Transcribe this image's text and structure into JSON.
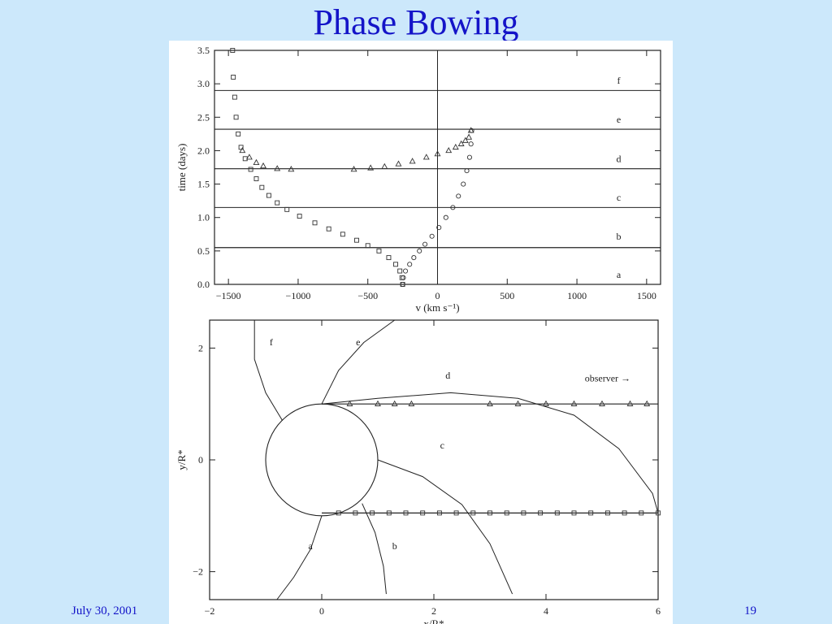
{
  "slide": {
    "title": "Phase Bowing",
    "footer_date": "July 30, 2001",
    "page_number": "19"
  },
  "chart_data": [
    {
      "type": "scatter",
      "title": "",
      "xlabel": "v (km s⁻¹)",
      "ylabel": "time (days)",
      "xlim": [
        -1600,
        1600
      ],
      "ylim": [
        0,
        3.5
      ],
      "x_ticks": [
        "−1500",
        "−1000",
        "−500",
        "0",
        "500",
        "1000",
        "1500"
      ],
      "y_ticks": [
        "0.0",
        "0.5",
        "1.0",
        "1.5",
        "2.0",
        "2.5",
        "3.0",
        "3.5"
      ],
      "phase_lines": [
        {
          "label": "a",
          "time": 0.55
        },
        {
          "label": "b",
          "time": 0.55
        },
        {
          "label": "c",
          "time": 1.15
        },
        {
          "label": "d",
          "time": 1.73
        },
        {
          "label": "e",
          "time": 2.32
        },
        {
          "label": "f",
          "time": 2.9
        }
      ],
      "series": [
        {
          "marker": "square",
          "points": [
            [
              -250,
              0
            ],
            [
              -255,
              0.1
            ],
            [
              -270,
              0.2
            ],
            [
              -300,
              0.3
            ],
            [
              -350,
              0.4
            ],
            [
              -420,
              0.5
            ],
            [
              -500,
              0.58
            ],
            [
              -580,
              0.66
            ],
            [
              -680,
              0.75
            ],
            [
              -780,
              0.83
            ],
            [
              -880,
              0.92
            ],
            [
              -990,
              1.02
            ],
            [
              -1080,
              1.12
            ],
            [
              -1150,
              1.22
            ],
            [
              -1210,
              1.33
            ],
            [
              -1260,
              1.45
            ],
            [
              -1300,
              1.58
            ],
            [
              -1340,
              1.72
            ],
            [
              -1380,
              1.88
            ],
            [
              -1410,
              2.05
            ],
            [
              -1430,
              2.25
            ],
            [
              -1445,
              2.5
            ],
            [
              -1455,
              2.8
            ],
            [
              -1465,
              3.1
            ],
            [
              -1470,
              3.5
            ]
          ]
        },
        {
          "marker": "circle",
          "points": [
            [
              -250,
              0
            ],
            [
              -245,
              0.1
            ],
            [
              -230,
              0.2
            ],
            [
              -200,
              0.3
            ],
            [
              -170,
              0.4
            ],
            [
              -130,
              0.5
            ],
            [
              -90,
              0.6
            ],
            [
              -40,
              0.72
            ],
            [
              10,
              0.85
            ],
            [
              60,
              1.0
            ],
            [
              110,
              1.15
            ],
            [
              150,
              1.32
            ],
            [
              185,
              1.5
            ],
            [
              210,
              1.7
            ],
            [
              230,
              1.9
            ],
            [
              240,
              2.1
            ],
            [
              245,
              2.3
            ]
          ]
        },
        {
          "marker": "triangle",
          "points": [
            [
              -1400,
              2.0
            ],
            [
              -1350,
              1.9
            ],
            [
              -1300,
              1.82
            ],
            [
              -1250,
              1.77
            ],
            [
              -1150,
              1.73
            ],
            [
              -1050,
              1.72
            ],
            [
              -600,
              1.72
            ],
            [
              -480,
              1.74
            ],
            [
              -380,
              1.76
            ],
            [
              -280,
              1.8
            ],
            [
              -180,
              1.84
            ],
            [
              -80,
              1.9
            ],
            [
              0,
              1.95
            ],
            [
              80,
              2.0
            ],
            [
              130,
              2.05
            ],
            [
              170,
              2.1
            ],
            [
              200,
              2.15
            ],
            [
              225,
              2.2
            ],
            [
              240,
              2.3
            ]
          ]
        }
      ]
    },
    {
      "type": "line",
      "title": "",
      "xlabel": "x/R*",
      "ylabel": "y/R*",
      "xlim": [
        -2,
        6
      ],
      "ylim": [
        -2.5,
        2.5
      ],
      "x_ticks": [
        "−2",
        "0",
        "2",
        "4",
        "6"
      ],
      "y_ticks": [
        "−2",
        "0",
        "2"
      ],
      "star_radius": 1,
      "observer_label": "observer →",
      "curve_labels": [
        {
          "label": "a",
          "x": -0.2,
          "y": -1.6
        },
        {
          "label": "b",
          "x": 1.3,
          "y": -1.6
        },
        {
          "label": "c",
          "x": 2.15,
          "y": 0.2
        },
        {
          "label": "d",
          "x": 2.25,
          "y": 1.45
        },
        {
          "label": "e",
          "x": 0.65,
          "y": 2.05
        },
        {
          "label": "f",
          "x": -0.9,
          "y": 2.05
        }
      ],
      "rays": [
        {
          "y": 1.0,
          "x_start": 0,
          "x_end": 6
        },
        {
          "y": -0.95,
          "x_start": 0,
          "x_end": 6
        }
      ],
      "curves": [
        {
          "name": "a",
          "points": [
            [
              0,
              -1
            ],
            [
              -0.2,
              -1.6
            ],
            [
              -0.5,
              -2.1
            ],
            [
              -0.8,
              -2.5
            ]
          ]
        },
        {
          "name": "b",
          "points": [
            [
              0.72,
              -0.78
            ],
            [
              0.95,
              -1.3
            ],
            [
              1.1,
              -1.9
            ],
            [
              1.15,
              -2.4
            ]
          ]
        },
        {
          "name": "c",
          "points": [
            [
              1.0,
              0.0
            ],
            [
              1.8,
              -0.3
            ],
            [
              2.5,
              -0.8
            ],
            [
              3.0,
              -1.5
            ],
            [
              3.4,
              -2.4
            ]
          ]
        },
        {
          "name": "d",
          "points": [
            [
              0,
              1.0
            ],
            [
              1.0,
              1.1
            ],
            [
              2.3,
              1.2
            ],
            [
              3.5,
              1.1
            ],
            [
              4.5,
              0.8
            ],
            [
              5.3,
              0.2
            ],
            [
              5.9,
              -0.6
            ],
            [
              6.0,
              -0.95
            ]
          ]
        },
        {
          "name": "e",
          "points": [
            [
              0,
              1.0
            ],
            [
              0.3,
              1.6
            ],
            [
              0.75,
              2.1
            ],
            [
              1.3,
              2.5
            ]
          ]
        },
        {
          "name": "f",
          "points": [
            [
              -0.7,
              0.7
            ],
            [
              -1.0,
              1.2
            ],
            [
              -1.2,
              1.8
            ],
            [
              -1.2,
              2.5
            ]
          ]
        }
      ],
      "markers_upper": [
        [
          0.5,
          1.0
        ],
        [
          1.0,
          1.0
        ],
        [
          1.3,
          1.0
        ],
        [
          1.6,
          1.0
        ],
        [
          3.0,
          1.0
        ],
        [
          3.5,
          1.0
        ],
        [
          4.0,
          1.0
        ],
        [
          4.5,
          1.0
        ],
        [
          5.0,
          1.0
        ],
        [
          5.5,
          1.0
        ],
        [
          5.8,
          1.0
        ]
      ],
      "markers_lower": [
        [
          0.3,
          -0.95
        ],
        [
          0.6,
          -0.95
        ],
        [
          0.9,
          -0.95
        ],
        [
          1.2,
          -0.95
        ],
        [
          1.5,
          -0.95
        ],
        [
          1.8,
          -0.95
        ],
        [
          2.1,
          -0.95
        ],
        [
          2.4,
          -0.95
        ],
        [
          2.7,
          -0.95
        ],
        [
          3.0,
          -0.95
        ],
        [
          3.3,
          -0.95
        ],
        [
          3.6,
          -0.95
        ],
        [
          3.9,
          -0.95
        ],
        [
          4.2,
          -0.95
        ],
        [
          4.5,
          -0.95
        ],
        [
          4.8,
          -0.95
        ],
        [
          5.1,
          -0.95
        ],
        [
          5.4,
          -0.95
        ],
        [
          5.7,
          -0.95
        ],
        [
          6.0,
          -0.95
        ]
      ]
    }
  ]
}
